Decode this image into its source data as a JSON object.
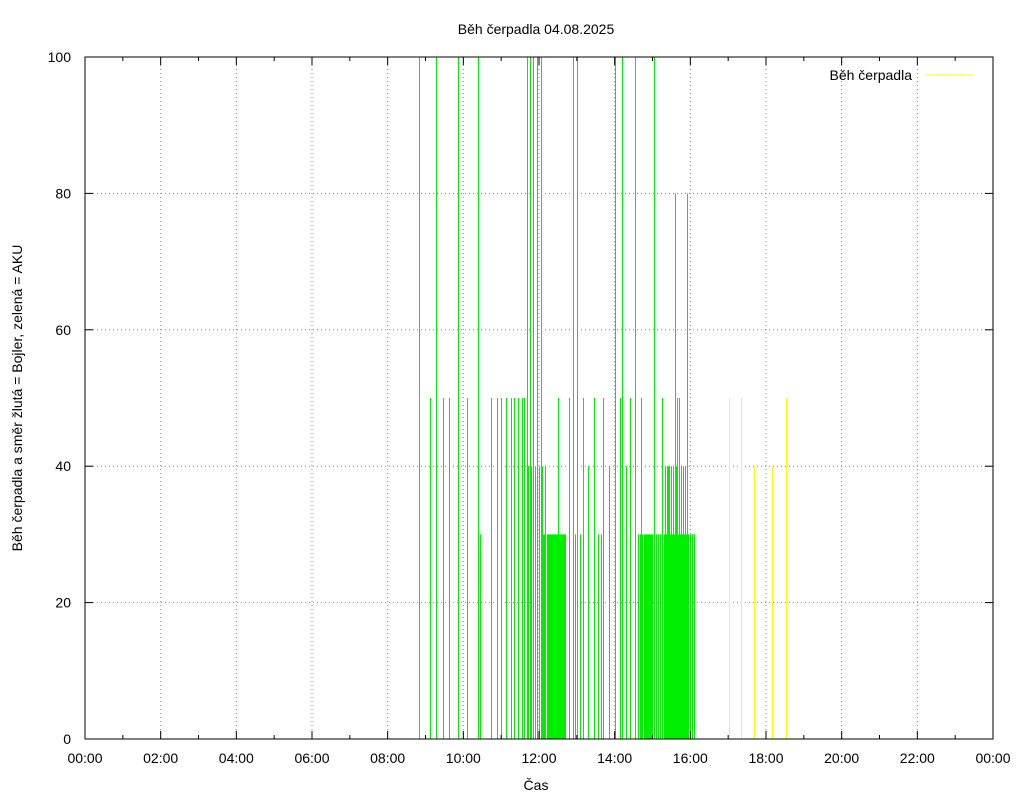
{
  "chart_data": {
    "type": "impulse",
    "title": "Běh čerpadla 04.08.2025",
    "xlabel": "Čas",
    "ylabel": "Běh čerpadla a směr žlutá = Bojler, zelená = AKU",
    "xlim": [
      0,
      24
    ],
    "ylim": [
      0,
      100
    ],
    "grid": true,
    "legend_position": "top-right",
    "x_ticks": [
      "00:00",
      "02:00",
      "04:00",
      "06:00",
      "08:00",
      "10:00",
      "12:00",
      "14:00",
      "16:00",
      "18:00",
      "20:00",
      "22:00",
      "00:00"
    ],
    "y_ticks": [
      "0",
      "20",
      "40",
      "60",
      "80",
      "100"
    ],
    "legend": [
      {
        "label": "Běh čerpadla",
        "color": "#ffff00"
      }
    ],
    "series": [
      {
        "name": "AKU",
        "color": "#00ee00",
        "points": [
          [
            8.83,
            100
          ],
          [
            9.12,
            50
          ],
          [
            9.28,
            100
          ],
          [
            9.45,
            50
          ],
          [
            9.62,
            50
          ],
          [
            9.87,
            100
          ],
          [
            10.1,
            50
          ],
          [
            10.4,
            100
          ],
          [
            10.45,
            30
          ],
          [
            10.73,
            50
          ],
          [
            10.9,
            50
          ],
          [
            11.0,
            50
          ],
          [
            11.13,
            50
          ],
          [
            11.25,
            50
          ],
          [
            11.35,
            50
          ],
          [
            11.45,
            50
          ],
          [
            11.55,
            50
          ],
          [
            11.6,
            50
          ],
          [
            11.67,
            100
          ],
          [
            11.7,
            40
          ],
          [
            11.75,
            100
          ],
          [
            11.8,
            40
          ],
          [
            11.85,
            100
          ],
          [
            11.9,
            40
          ],
          [
            11.95,
            100
          ],
          [
            12.0,
            40
          ],
          [
            12.05,
            100
          ],
          [
            12.08,
            40
          ],
          [
            12.12,
            30
          ],
          [
            12.16,
            40
          ],
          [
            12.2,
            30
          ],
          [
            12.25,
            30
          ],
          [
            12.3,
            30
          ],
          [
            12.35,
            30
          ],
          [
            12.4,
            30
          ],
          [
            12.45,
            30
          ],
          [
            12.5,
            50
          ],
          [
            12.55,
            30
          ],
          [
            12.6,
            30
          ],
          [
            12.65,
            30
          ],
          [
            12.7,
            30
          ],
          [
            12.8,
            50
          ],
          [
            12.9,
            100
          ],
          [
            12.95,
            30
          ],
          [
            13.0,
            100
          ],
          [
            13.08,
            30
          ],
          [
            13.15,
            50
          ],
          [
            13.3,
            40
          ],
          [
            13.45,
            50
          ],
          [
            13.55,
            30
          ],
          [
            13.65,
            30
          ],
          [
            13.7,
            50
          ],
          [
            13.85,
            40
          ],
          [
            14.0,
            100
          ],
          [
            14.15,
            50
          ],
          [
            14.2,
            100
          ],
          [
            14.3,
            40
          ],
          [
            14.4,
            50
          ],
          [
            14.55,
            100
          ],
          [
            14.62,
            30
          ],
          [
            14.7,
            50
          ],
          [
            14.8,
            30
          ],
          [
            14.85,
            30
          ],
          [
            14.9,
            30
          ],
          [
            14.95,
            30
          ],
          [
            15.05,
            100
          ],
          [
            15.1,
            30
          ],
          [
            15.15,
            30
          ],
          [
            15.25,
            50
          ],
          [
            15.3,
            30
          ],
          [
            15.32,
            40
          ],
          [
            15.35,
            30
          ],
          [
            15.4,
            40
          ],
          [
            15.45,
            30
          ],
          [
            15.5,
            40
          ],
          [
            15.55,
            30
          ],
          [
            15.6,
            80
          ],
          [
            15.63,
            40
          ],
          [
            15.65,
            50
          ],
          [
            15.68,
            30
          ],
          [
            15.7,
            50
          ],
          [
            15.75,
            40
          ],
          [
            15.8,
            30
          ],
          [
            15.85,
            40
          ],
          [
            15.9,
            80
          ],
          [
            15.95,
            30
          ],
          [
            16.0,
            30
          ],
          [
            16.05,
            30
          ],
          [
            16.1,
            30
          ]
        ]
      },
      {
        "name": "Běh čerpadla",
        "color": "#ffff00",
        "points": [
          [
            17.03,
            50
          ],
          [
            17.35,
            50
          ],
          [
            17.67,
            40
          ],
          [
            18.17,
            40
          ],
          [
            18.53,
            50
          ]
        ]
      }
    ]
  }
}
